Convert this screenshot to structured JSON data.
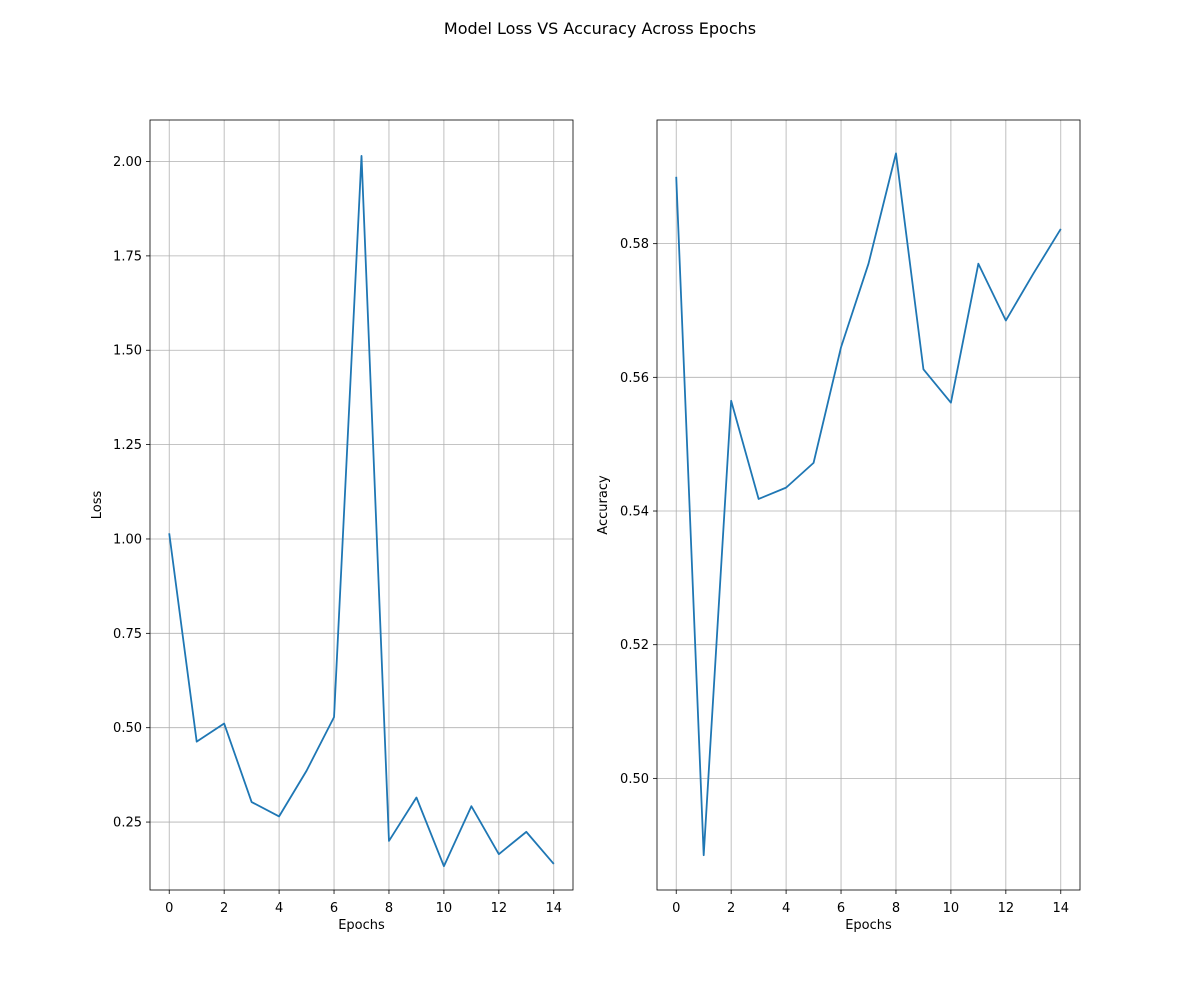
{
  "figure": {
    "title": "Model Loss VS Accuracy Across Epochs",
    "line_color": "#1f77b4",
    "grid_color": "#b0b0b0"
  },
  "chart_data": [
    {
      "type": "line",
      "title": "",
      "xlabel": "Epochs",
      "ylabel": "Loss",
      "grid": true,
      "xlim": [
        -0.7,
        14.7
      ],
      "ylim": [
        0.07,
        2.11
      ],
      "xticks": [
        0,
        2,
        4,
        6,
        8,
        10,
        12,
        14
      ],
      "xtick_labels": [
        "0",
        "2",
        "4",
        "6",
        "8",
        "10",
        "12",
        "14"
      ],
      "yticks": [
        0.25,
        0.5,
        0.75,
        1.0,
        1.25,
        1.5,
        1.75,
        2.0
      ],
      "ytick_labels": [
        "0.25",
        "0.50",
        "0.75",
        "1.00",
        "1.25",
        "1.50",
        "1.75",
        "2.00"
      ],
      "x": [
        0,
        1,
        2,
        3,
        4,
        5,
        6,
        7,
        8,
        9,
        10,
        11,
        12,
        13,
        14
      ],
      "series": [
        {
          "values": [
            1.015,
            0.463,
            0.511,
            0.303,
            0.265,
            0.386,
            0.528,
            2.015,
            0.2,
            0.315,
            0.133,
            0.292,
            0.165,
            0.224,
            0.139
          ]
        }
      ]
    },
    {
      "type": "line",
      "title": "",
      "xlabel": "Epochs",
      "ylabel": "Accuracy",
      "grid": true,
      "xlim": [
        -0.7,
        14.7
      ],
      "ylim": [
        0.4833,
        0.5985
      ],
      "xticks": [
        0,
        2,
        4,
        6,
        8,
        10,
        12,
        14
      ],
      "xtick_labels": [
        "0",
        "2",
        "4",
        "6",
        "8",
        "10",
        "12",
        "14"
      ],
      "yticks": [
        0.5,
        0.52,
        0.54,
        0.56,
        0.58
      ],
      "ytick_labels": [
        "0.50",
        "0.52",
        "0.54",
        "0.56",
        "0.58"
      ],
      "x": [
        0,
        1,
        2,
        3,
        4,
        5,
        6,
        7,
        8,
        9,
        10,
        11,
        12,
        13,
        14
      ],
      "series": [
        {
          "values": [
            0.59,
            0.4885,
            0.5565,
            0.5418,
            0.5435,
            0.5472,
            0.5645,
            0.577,
            0.5935,
            0.5612,
            0.5562,
            0.577,
            0.5685,
            0.5755,
            0.5822
          ]
        }
      ]
    }
  ]
}
